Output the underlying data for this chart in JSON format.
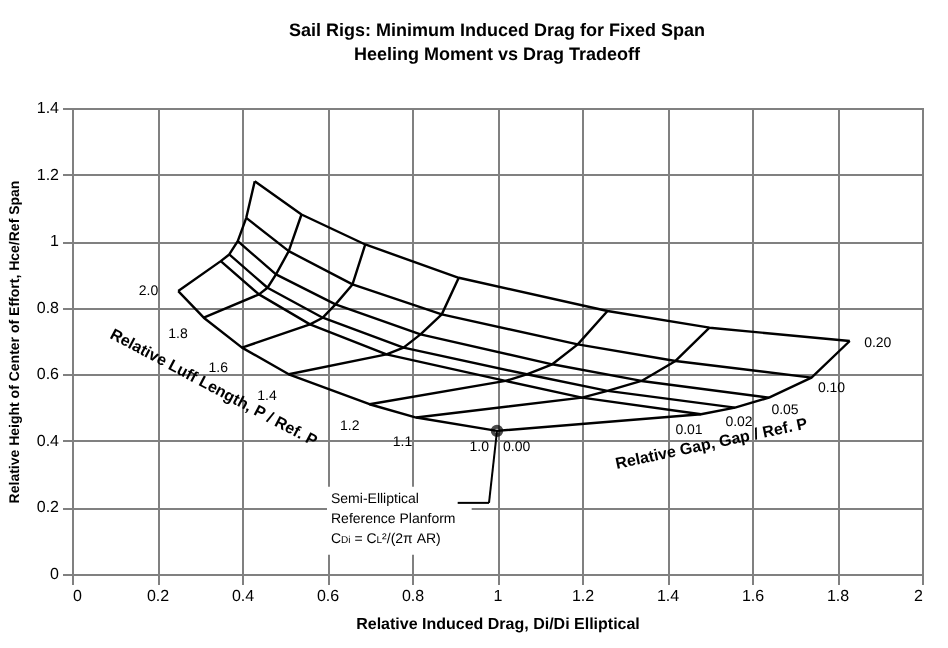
{
  "chart_data": {
    "type": "line",
    "title": "Sail Rigs: Minimum Induced Drag for Fixed Span",
    "subtitle": "Heeling Moment vs Drag Tradeoff",
    "xlabel": "Relative Induced Drag, Di/Di Elliptical",
    "ylabel": "Relative Height of Center of Effort, Hce/Ref Span",
    "xlim": [
      0,
      2
    ],
    "xticks": [
      0,
      0.2,
      0.4,
      0.6,
      0.8,
      1,
      1.2,
      1.4,
      1.6,
      1.8,
      2
    ],
    "ylim": [
      0,
      1.4
    ],
    "yticks": [
      0,
      0.2,
      0.4,
      0.6,
      0.8,
      1,
      1.2,
      1.4
    ],
    "grid": true,
    "marker": "none",
    "line_style": "solid",
    "series": [
      {
        "color": "#000000",
        "x": [
          0.25,
          0.31,
          0.4,
          0.51,
          0.7,
          0.81,
          1.0
        ],
        "values": [
          0.85,
          0.77,
          0.68,
          0.6,
          0.51,
          0.47,
          0.43
        ]
      },
      {
        "color": "#000000",
        "x": [
          0.35,
          0.44,
          0.56,
          0.74,
          1.02,
          1.2,
          1.48
        ],
        "values": [
          0.94,
          0.84,
          0.75,
          0.66,
          0.58,
          0.53,
          0.48
        ]
      },
      {
        "color": "#000000",
        "x": [
          0.37,
          0.46,
          0.59,
          0.78,
          1.07,
          1.26,
          1.56
        ],
        "values": [
          0.96,
          0.86,
          0.77,
          0.68,
          0.6,
          0.55,
          0.5
        ]
      },
      {
        "color": "#000000",
        "x": [
          0.39,
          0.48,
          0.62,
          0.82,
          1.13,
          1.34,
          1.64
        ],
        "values": [
          1.0,
          0.9,
          0.81,
          0.72,
          0.63,
          0.58,
          0.53
        ]
      },
      {
        "color": "#000000",
        "x": [
          0.41,
          0.51,
          0.66,
          0.87,
          1.19,
          1.42,
          1.74
        ],
        "values": [
          1.07,
          0.97,
          0.87,
          0.78,
          0.69,
          0.64,
          0.59
        ]
      },
      {
        "color": "#000000",
        "x": [
          0.43,
          0.54,
          0.69,
          0.91,
          1.26,
          1.5,
          1.83
        ],
        "values": [
          1.18,
          1.08,
          0.99,
          0.89,
          0.79,
          0.74,
          0.7
        ]
      },
      {
        "color": "#000000",
        "x": [
          0.25,
          0.35,
          0.37,
          0.39,
          0.41,
          0.43
        ],
        "values": [
          0.85,
          0.94,
          0.96,
          1.0,
          1.07,
          1.18
        ]
      },
      {
        "color": "#000000",
        "x": [
          0.31,
          0.44,
          0.46,
          0.48,
          0.51,
          0.54
        ],
        "values": [
          0.77,
          0.84,
          0.86,
          0.9,
          0.97,
          1.08
        ]
      },
      {
        "color": "#000000",
        "x": [
          0.4,
          0.56,
          0.59,
          0.62,
          0.66,
          0.69
        ],
        "values": [
          0.68,
          0.75,
          0.77,
          0.81,
          0.87,
          0.99
        ]
      },
      {
        "color": "#000000",
        "x": [
          0.51,
          0.74,
          0.78,
          0.82,
          0.87,
          0.91
        ],
        "values": [
          0.6,
          0.66,
          0.68,
          0.72,
          0.78,
          0.89
        ]
      },
      {
        "color": "#000000",
        "x": [
          0.7,
          1.02,
          1.07,
          1.13,
          1.19,
          1.26
        ],
        "values": [
          0.51,
          0.58,
          0.6,
          0.63,
          0.69,
          0.79
        ]
      },
      {
        "color": "#000000",
        "x": [
          0.81,
          1.2,
          1.26,
          1.34,
          1.42,
          1.5
        ],
        "values": [
          0.47,
          0.53,
          0.55,
          0.58,
          0.64,
          0.74
        ]
      },
      {
        "color": "#000000",
        "x": [
          1.0,
          1.48,
          1.56,
          1.64,
          1.74,
          1.83
        ],
        "values": [
          0.43,
          0.48,
          0.5,
          0.53,
          0.59,
          0.7
        ]
      }
    ],
    "annotations": [
      {
        "text": "2.0",
        "x": 0.25,
        "y": 0.85
      },
      {
        "text": "1.8",
        "x": 0.31,
        "y": 0.77
      },
      {
        "text": "1.6",
        "x": 0.4,
        "y": 0.68
      },
      {
        "text": "1.4",
        "x": 0.51,
        "y": 0.6
      },
      {
        "text": "1.2",
        "x": 0.7,
        "y": 0.51
      },
      {
        "text": "1.1",
        "x": 0.81,
        "y": 0.47
      },
      {
        "text": "1.0",
        "x": 1.0,
        "y": 0.43
      },
      {
        "text": "0.00",
        "x": 1.0,
        "y": 0.43
      },
      {
        "text": "0.01",
        "x": 1.48,
        "y": 0.48
      },
      {
        "text": "0.02",
        "x": 1.56,
        "y": 0.5
      },
      {
        "text": "0.05",
        "x": 1.64,
        "y": 0.53
      },
      {
        "text": "0.10",
        "x": 1.74,
        "y": 0.59
      },
      {
        "text": "0.20",
        "x": 1.83,
        "y": 0.7
      },
      "Relative Luff Length, P / Ref. P",
      "Relative Gap, Gap / Ref. P",
      "Semi-Elliptical\nReference Planform\nC$_{Di}$ = C$_{L}$²/(2π AR)"
    ]
  }
}
